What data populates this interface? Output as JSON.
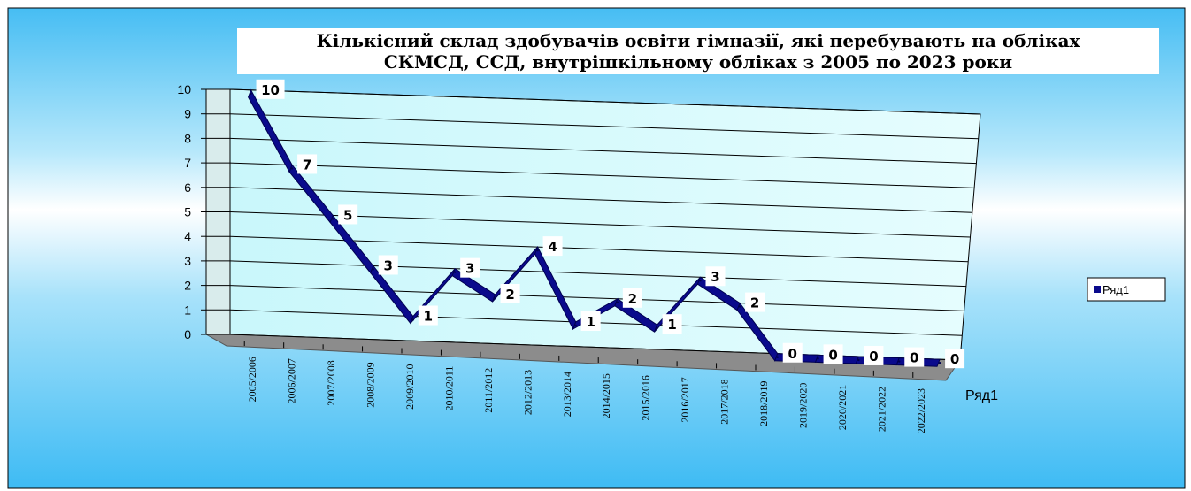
{
  "chart_data": {
    "type": "line",
    "title_lines": [
      "Кількісний склад здобувачів освіти гімназії, які перебувають на обліках",
      "СКМСД, ССД, внутрішкільному обліках з 2005 по 2023 роки"
    ],
    "categories": [
      "2005/2006",
      "2006/2007",
      "2007/2008",
      "2008/2009",
      "2009/2010",
      "2010/2011",
      "2011/2012",
      "2012/2013",
      "2013/2014",
      "2014/2015",
      "2015/2016",
      "2016/2017",
      "2017/2018",
      "2018/2019",
      "2019/2020",
      "2020/2021",
      "2021/2022",
      "2022/2023"
    ],
    "series": [
      {
        "name": "Ряд1",
        "values": [
          10,
          7,
          5,
          3,
          1,
          3,
          2,
          4,
          1,
          2,
          1,
          3,
          2,
          0,
          0,
          0,
          0,
          0
        ]
      }
    ],
    "data_labels": [
      "10",
      "7",
      "5",
      "3",
      "1",
      "3",
      "2",
      "4",
      "1",
      "2",
      "1",
      "3",
      "2",
      "0",
      "0",
      "0",
      "0",
      "0"
    ],
    "y_ticks": [
      "0",
      "1",
      "2",
      "3",
      "4",
      "5",
      "6",
      "7",
      "8",
      "9",
      "10"
    ],
    "ylim": [
      0,
      10
    ],
    "legend": {
      "label": "Ряд1",
      "position": "right"
    },
    "depth_axis_label": "Ряд1",
    "grid": true,
    "view": "3d",
    "colors": {
      "series": "#0a0a8c",
      "series_dark": "#000050",
      "plot_back": "#d6fbfd",
      "wall": "#e0f4f4",
      "floor": "#8c8c8c"
    }
  }
}
